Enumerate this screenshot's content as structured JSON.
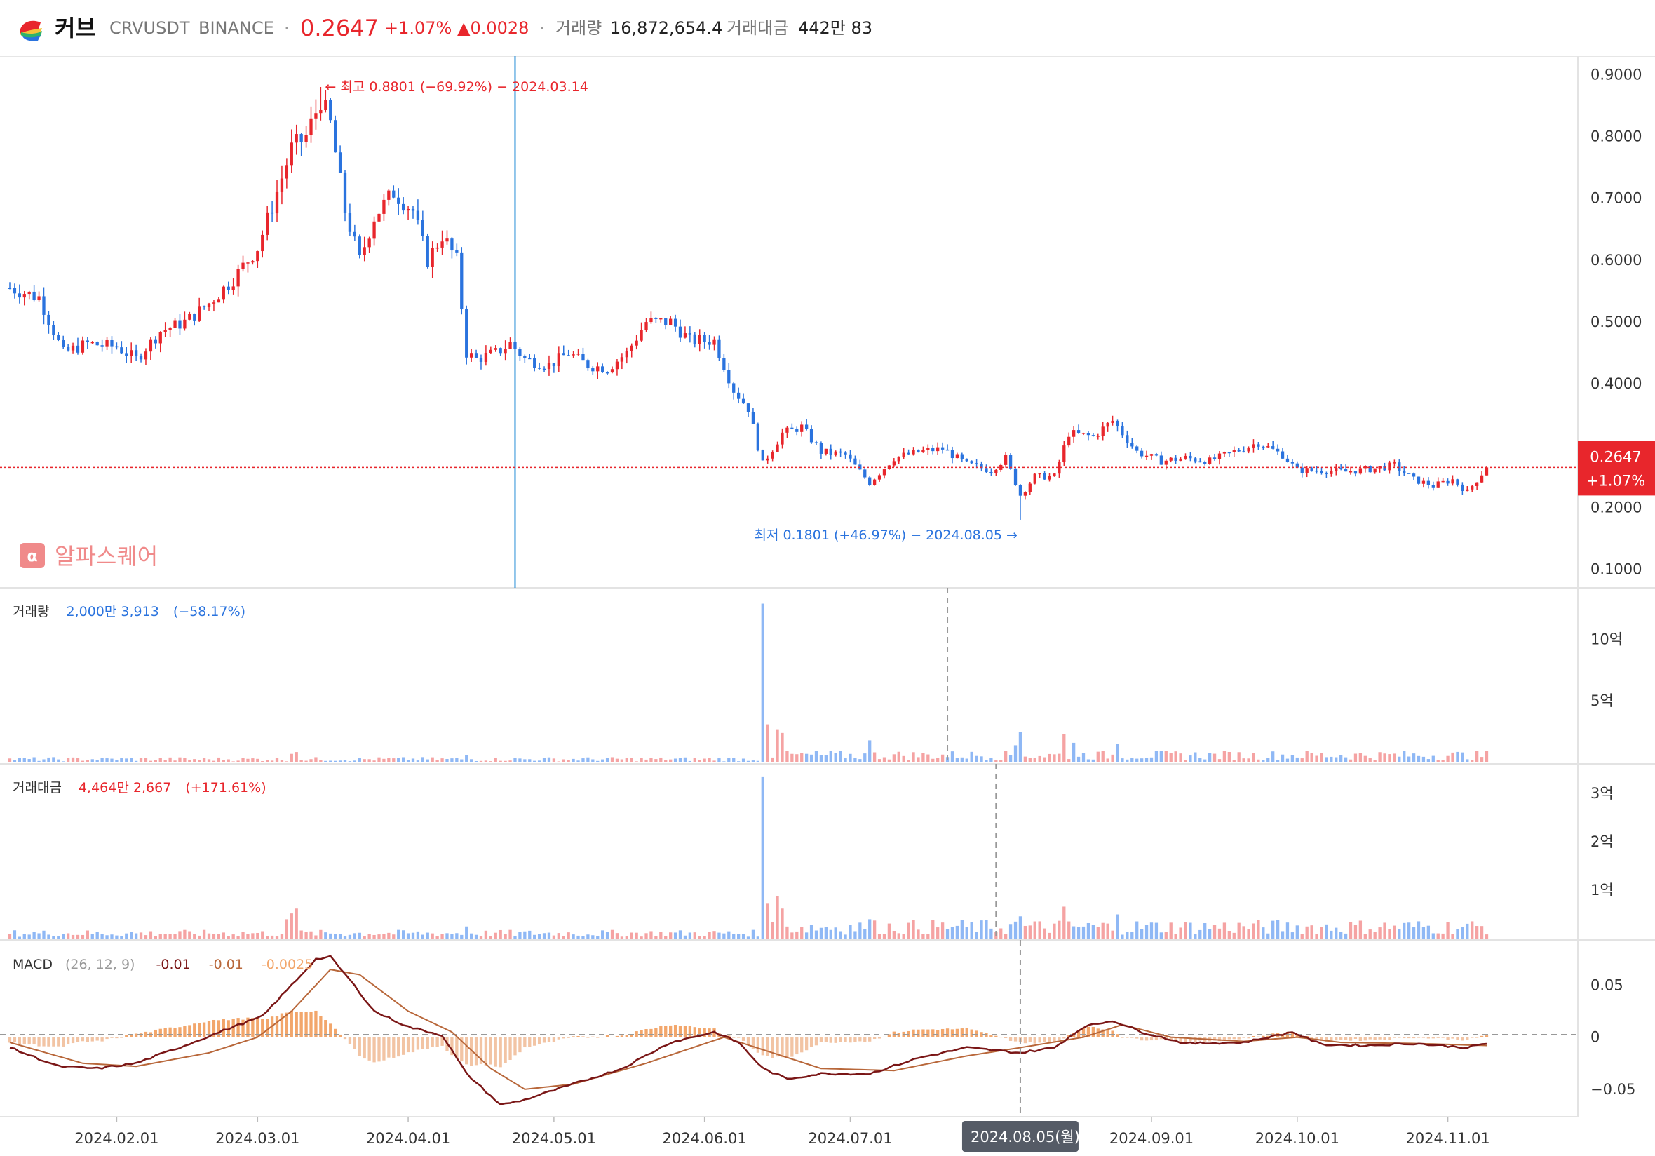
{
  "header": {
    "name": "커브",
    "symbol": "CRVUSDT",
    "exchange": "BINANCE",
    "separator": "·",
    "price": "0.2647",
    "change_pct": "+1.07%",
    "change_abs": "▲0.0028",
    "volume_label": "거래량",
    "volume_value": "16,872,654.4",
    "amount_label": "거래대금",
    "amount_value": "442만 83"
  },
  "colors": {
    "up": "#e8262c",
    "down": "#2a73de",
    "vol_up": "#f5a3a3",
    "vol_down": "#8fb8f5",
    "macd_line": "#7a1616",
    "signal_line": "#b8673a",
    "hist": "#f2a66b"
  },
  "watermark": "알파스퀘어",
  "annotations": {
    "high": "← 최고 0.8801 (−69.92%) − 2024.03.14",
    "low": "최저 0.1801 (+46.97%) − 2024.08.05 →"
  },
  "price_badge": {
    "price": "0.2647",
    "pct": "+1.07%"
  },
  "panes": {
    "volume": {
      "label": "거래량",
      "value": "2,000만 3,913",
      "pct": "(−58.17%)"
    },
    "amount": {
      "label": "거래대금",
      "value": "4,464만 2,667",
      "pct": "(+171.61%)"
    },
    "macd": {
      "label": "MACD",
      "params": "(26, 12, 9)",
      "macd": "-0.01",
      "signal": "-0.01",
      "hist": "-0.0025"
    }
  },
  "crosshair_date": "2024.08.05(월)",
  "chart_data": [
    {
      "type": "candlestick",
      "x_range": [
        "2024-01-10",
        "2024-11-09"
      ],
      "ylim": [
        0.07,
        0.93
      ],
      "y_ticks": [
        "0.9000",
        "0.8000",
        "0.7000",
        "0.6000",
        "0.5000",
        "0.4000",
        "0.2000",
        "0.1000"
      ],
      "y_tick_values": [
        0.9,
        0.8,
        0.7,
        0.6,
        0.5,
        0.4,
        0.2,
        0.1
      ],
      "x_ticks": [
        "2024.02.01",
        "2024.03.01",
        "2024.04.01",
        "2024.05.01",
        "2024.06.01",
        "2024.07.01",
        "2024.09.01",
        "2024.10.01",
        "2024.11.01"
      ],
      "high": {
        "date": "2024-03-14",
        "value": 0.8801
      },
      "low": {
        "date": "2024-08-05",
        "value": 0.1801
      },
      "last": 0.2647,
      "close_keypoints": [
        [
          "2024-01-10",
          0.555
        ],
        [
          "2024-01-16",
          0.54
        ],
        [
          "2024-01-21",
          0.45
        ],
        [
          "2024-01-26",
          0.465
        ],
        [
          "2024-02-01",
          0.46
        ],
        [
          "2024-02-05",
          0.44
        ],
        [
          "2024-02-10",
          0.485
        ],
        [
          "2024-02-15",
          0.5
        ],
        [
          "2024-02-20",
          0.53
        ],
        [
          "2024-02-25",
          0.57
        ],
        [
          "2024-03-01",
          0.62
        ],
        [
          "2024-03-05",
          0.71
        ],
        [
          "2024-03-08",
          0.78
        ],
        [
          "2024-03-11",
          0.8
        ],
        [
          "2024-03-14",
          0.86
        ],
        [
          "2024-03-16",
          0.82
        ],
        [
          "2024-03-19",
          0.68
        ],
        [
          "2024-03-22",
          0.6
        ],
        [
          "2024-03-25",
          0.67
        ],
        [
          "2024-03-29",
          0.71
        ],
        [
          "2024-04-02",
          0.68
        ],
        [
          "2024-04-05",
          0.6
        ],
        [
          "2024-04-08",
          0.64
        ],
        [
          "2024-04-11",
          0.6
        ],
        [
          "2024-04-13",
          0.45
        ],
        [
          "2024-04-15",
          0.44
        ],
        [
          "2024-04-19",
          0.45
        ],
        [
          "2024-04-22",
          0.465
        ],
        [
          "2024-04-25",
          0.44
        ],
        [
          "2024-04-30",
          0.43
        ],
        [
          "2024-05-04",
          0.45
        ],
        [
          "2024-05-08",
          0.43
        ],
        [
          "2024-05-12",
          0.425
        ],
        [
          "2024-05-16",
          0.45
        ],
        [
          "2024-05-20",
          0.5
        ],
        [
          "2024-05-25",
          0.5
        ],
        [
          "2024-05-29",
          0.47
        ],
        [
          "2024-06-03",
          0.47
        ],
        [
          "2024-06-07",
          0.39
        ],
        [
          "2024-06-10",
          0.36
        ],
        [
          "2024-06-13",
          0.27
        ],
        [
          "2024-06-17",
          0.32
        ],
        [
          "2024-06-21",
          0.33
        ],
        [
          "2024-06-25",
          0.29
        ],
        [
          "2024-06-30",
          0.285
        ],
        [
          "2024-07-05",
          0.24
        ],
        [
          "2024-07-10",
          0.28
        ],
        [
          "2024-07-15",
          0.29
        ],
        [
          "2024-07-20",
          0.295
        ],
        [
          "2024-07-25",
          0.27
        ],
        [
          "2024-07-30",
          0.26
        ],
        [
          "2024-08-02",
          0.28
        ],
        [
          "2024-08-05",
          0.22
        ],
        [
          "2024-08-08",
          0.25
        ],
        [
          "2024-08-12",
          0.25
        ],
        [
          "2024-08-15",
          0.32
        ],
        [
          "2024-08-20",
          0.315
        ],
        [
          "2024-08-24",
          0.34
        ],
        [
          "2024-08-26",
          0.32
        ],
        [
          "2024-08-29",
          0.29
        ],
        [
          "2024-09-03",
          0.275
        ],
        [
          "2024-09-08",
          0.28
        ],
        [
          "2024-09-13",
          0.275
        ],
        [
          "2024-09-18",
          0.29
        ],
        [
          "2024-09-23",
          0.305
        ],
        [
          "2024-09-28",
          0.285
        ],
        [
          "2024-10-01",
          0.26
        ],
        [
          "2024-10-06",
          0.26
        ],
        [
          "2024-10-11",
          0.258
        ],
        [
          "2024-10-16",
          0.262
        ],
        [
          "2024-10-21",
          0.268
        ],
        [
          "2024-10-25",
          0.245
        ],
        [
          "2024-10-29",
          0.235
        ],
        [
          "2024-11-02",
          0.245
        ],
        [
          "2024-11-05",
          0.225
        ],
        [
          "2024-11-09",
          0.2647
        ]
      ]
    },
    {
      "type": "bar",
      "name": "거래량",
      "y_ticks": [
        "10억",
        "5억"
      ],
      "y_tick_values": [
        1000000000,
        500000000
      ],
      "ylim": [
        0,
        1350000000
      ],
      "spikes": [
        [
          "2024-03-08",
          70000000
        ],
        [
          "2024-03-09",
          85000000
        ],
        [
          "2024-04-13",
          60000000
        ],
        [
          "2024-06-13",
          1290000000
        ],
        [
          "2024-06-14",
          310000000
        ],
        [
          "2024-06-16",
          270000000
        ],
        [
          "2024-06-17",
          240000000
        ],
        [
          "2024-07-05",
          180000000
        ],
        [
          "2024-08-05",
          250000000
        ],
        [
          "2024-08-04",
          140000000
        ],
        [
          "2024-08-14",
          230000000
        ],
        [
          "2024-08-25",
          150000000
        ],
        [
          "2024-08-16",
          160000000
        ]
      ],
      "baseline": 22000000
    },
    {
      "type": "bar",
      "name": "거래대금",
      "y_ticks": [
        "3억",
        "2억",
        "1억"
      ],
      "y_tick_values": [
        300000000,
        200000000,
        100000000
      ],
      "ylim": [
        0,
        345000000
      ],
      "spikes": [
        [
          "2024-03-08",
          52000000
        ],
        [
          "2024-03-09",
          62000000
        ],
        [
          "2024-03-07",
          40000000
        ],
        [
          "2024-04-13",
          25000000
        ],
        [
          "2024-06-13",
          335000000
        ],
        [
          "2024-06-14",
          72000000
        ],
        [
          "2024-06-16",
          87000000
        ],
        [
          "2024-06-17",
          62000000
        ],
        [
          "2024-07-05",
          40000000
        ],
        [
          "2024-08-05",
          46000000
        ],
        [
          "2024-08-04",
          35000000
        ],
        [
          "2024-08-14",
          66000000
        ],
        [
          "2024-08-25",
          50000000
        ]
      ],
      "baseline": 9000000
    },
    {
      "type": "line",
      "name": "MACD",
      "y_ticks": [
        "0.05",
        "0",
        "−0.05"
      ],
      "y_tick_values": [
        0.05,
        0,
        -0.05
      ],
      "ylim": [
        -0.075,
        0.09
      ],
      "macd_keypoints": [
        [
          "2024-01-10",
          -0.01
        ],
        [
          "2024-01-20",
          -0.028
        ],
        [
          "2024-01-28",
          -0.03
        ],
        [
          "2024-02-05",
          -0.025
        ],
        [
          "2024-02-15",
          -0.008
        ],
        [
          "2024-02-25",
          0.01
        ],
        [
          "2024-03-02",
          0.02
        ],
        [
          "2024-03-08",
          0.05
        ],
        [
          "2024-03-13",
          0.075
        ],
        [
          "2024-03-16",
          0.077
        ],
        [
          "2024-03-20",
          0.055
        ],
        [
          "2024-03-25",
          0.025
        ],
        [
          "2024-04-01",
          0.01
        ],
        [
          "2024-04-08",
          0.002
        ],
        [
          "2024-04-13",
          -0.035
        ],
        [
          "2024-04-20",
          -0.065
        ],
        [
          "2024-04-25",
          -0.06
        ],
        [
          "2024-05-05",
          -0.045
        ],
        [
          "2024-05-15",
          -0.03
        ],
        [
          "2024-05-25",
          -0.005
        ],
        [
          "2024-06-03",
          0.005
        ],
        [
          "2024-06-08",
          -0.005
        ],
        [
          "2024-06-13",
          -0.03
        ],
        [
          "2024-06-18",
          -0.04
        ],
        [
          "2024-06-25",
          -0.035
        ],
        [
          "2024-07-05",
          -0.035
        ],
        [
          "2024-07-15",
          -0.02
        ],
        [
          "2024-07-25",
          -0.01
        ],
        [
          "2024-08-05",
          -0.015
        ],
        [
          "2024-08-12",
          -0.01
        ],
        [
          "2024-08-18",
          0.01
        ],
        [
          "2024-08-24",
          0.016
        ],
        [
          "2024-08-30",
          0.005
        ],
        [
          "2024-09-08",
          -0.006
        ],
        [
          "2024-09-20",
          -0.005
        ],
        [
          "2024-09-30",
          0.005
        ],
        [
          "2024-10-06",
          -0.007
        ],
        [
          "2024-10-15",
          -0.008
        ],
        [
          "2024-10-25",
          -0.006
        ],
        [
          "2024-11-05",
          -0.01
        ],
        [
          "2024-11-09",
          -0.006
        ]
      ],
      "signal_keypoints": [
        [
          "2024-01-10",
          -0.005
        ],
        [
          "2024-01-25",
          -0.025
        ],
        [
          "2024-02-05",
          -0.028
        ],
        [
          "2024-02-20",
          -0.015
        ],
        [
          "2024-03-01",
          0.0
        ],
        [
          "2024-03-08",
          0.025
        ],
        [
          "2024-03-16",
          0.065
        ],
        [
          "2024-03-22",
          0.06
        ],
        [
          "2024-04-01",
          0.025
        ],
        [
          "2024-04-10",
          0.005
        ],
        [
          "2024-04-18",
          -0.03
        ],
        [
          "2024-04-25",
          -0.05
        ],
        [
          "2024-05-05",
          -0.045
        ],
        [
          "2024-05-20",
          -0.025
        ],
        [
          "2024-06-05",
          0.0
        ],
        [
          "2024-06-15",
          -0.015
        ],
        [
          "2024-06-25",
          -0.03
        ],
        [
          "2024-07-10",
          -0.032
        ],
        [
          "2024-07-25",
          -0.018
        ],
        [
          "2024-08-05",
          -0.01
        ],
        [
          "2024-08-18",
          0.0
        ],
        [
          "2024-08-26",
          0.012
        ],
        [
          "2024-09-05",
          0.0
        ],
        [
          "2024-09-20",
          -0.004
        ],
        [
          "2024-10-01",
          0.0
        ],
        [
          "2024-10-10",
          -0.005
        ],
        [
          "2024-10-25",
          -0.006
        ],
        [
          "2024-11-09",
          -0.008
        ]
      ]
    }
  ]
}
